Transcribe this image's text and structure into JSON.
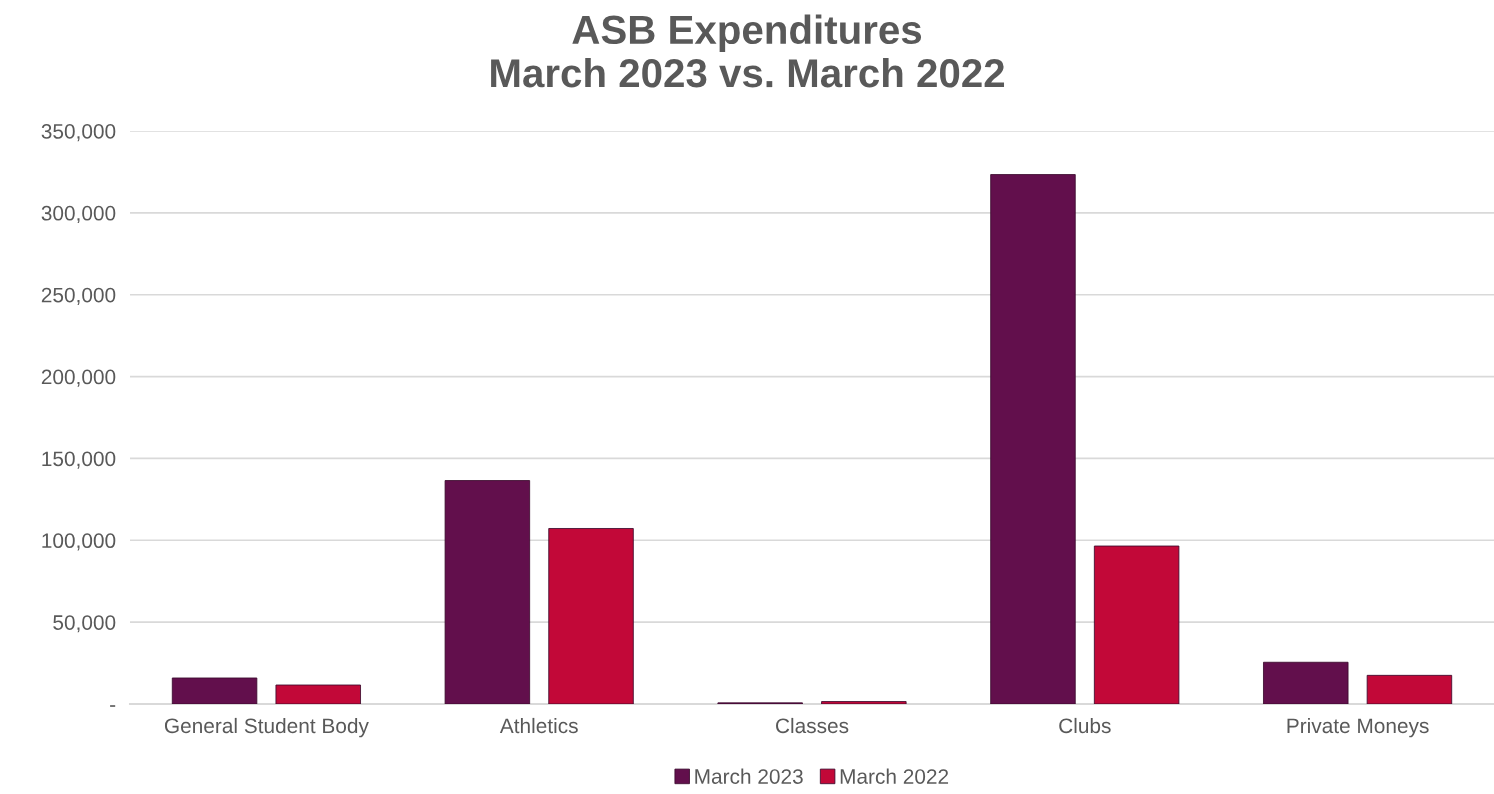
{
  "chart_data": {
    "type": "bar",
    "title": "ASB Expenditures\nMarch 2023 vs. March 2022",
    "categories": [
      "General Student Body",
      "Athletics",
      "Classes",
      "Clubs",
      "Private Moneys"
    ],
    "series": [
      {
        "name": "March 2023",
        "color": "#620f4c",
        "values": [
          15900,
          136500,
          700,
          323400,
          25500
        ]
      },
      {
        "name": "March 2022",
        "color": "#c20838",
        "values": [
          11600,
          107200,
          1500,
          96500,
          17500
        ]
      }
    ],
    "ylim": [
      0,
      350000
    ],
    "yticks": [
      {
        "value": 0,
        "label": "-"
      },
      {
        "value": 50000,
        "label": "50,000"
      },
      {
        "value": 100000,
        "label": "100,000"
      },
      {
        "value": 150000,
        "label": "150,000"
      },
      {
        "value": 200000,
        "label": "200,000"
      },
      {
        "value": 250000,
        "label": "250,000"
      },
      {
        "value": 300000,
        "label": "300,000"
      },
      {
        "value": 350000,
        "label": "350,000"
      }
    ],
    "grid": "y",
    "legend": "bottom"
  }
}
